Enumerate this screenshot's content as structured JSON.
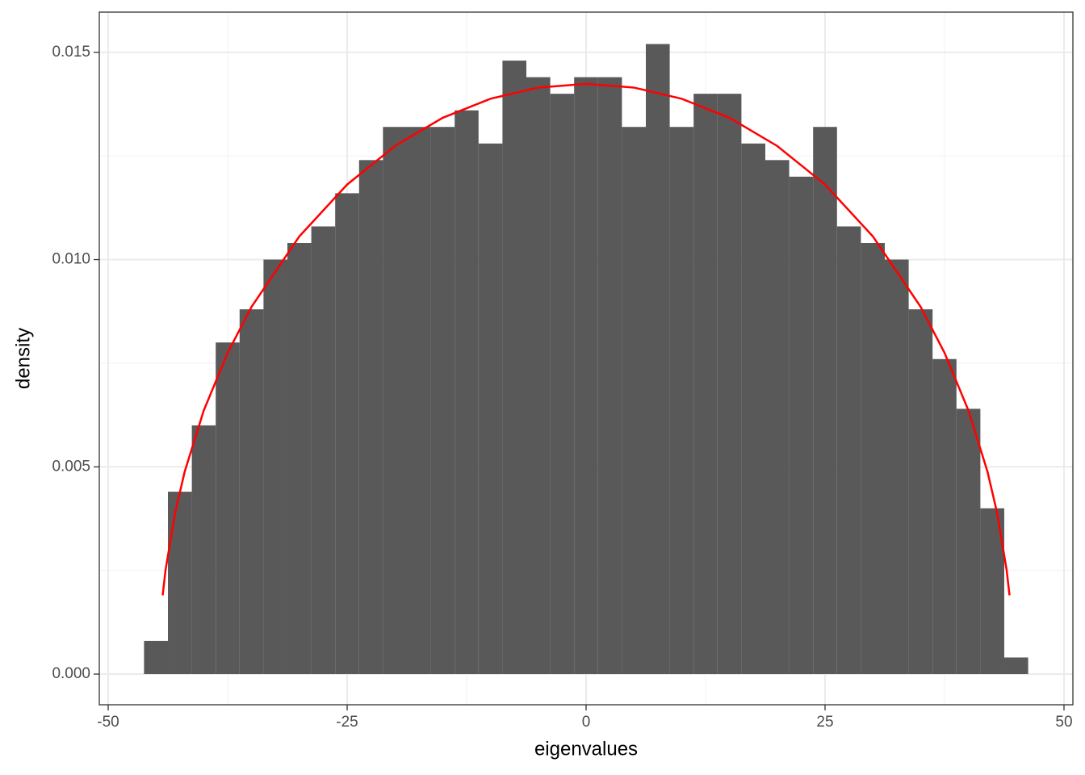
{
  "chart_data": {
    "type": "histogram",
    "bins": [
      -46.25,
      -43.75,
      -41.25,
      -38.75,
      -36.25,
      -33.75,
      -31.25,
      -28.75,
      -26.25,
      -23.75,
      -21.25,
      -18.75,
      -16.25,
      -13.75,
      -11.25,
      -8.75,
      -6.25,
      -3.75,
      -1.25,
      1.25,
      3.75,
      6.25,
      8.75,
      11.25,
      13.75,
      16.25,
      18.75,
      21.25,
      23.75,
      26.25,
      28.75,
      31.25,
      33.75,
      36.25,
      38.75,
      41.25,
      43.75,
      46.25
    ],
    "values": [
      0.0008,
      0.0044,
      0.006,
      0.008,
      0.0088,
      0.01,
      0.0104,
      0.0108,
      0.0116,
      0.0124,
      0.0132,
      0.0132,
      0.0132,
      0.0136,
      0.0128,
      0.0148,
      0.0144,
      0.014,
      0.0144,
      0.0144,
      0.0132,
      0.0152,
      0.0132,
      0.014,
      0.014,
      0.0128,
      0.0124,
      0.012,
      0.0132,
      0.0108,
      0.0104,
      0.01,
      0.0088,
      0.0076,
      0.0064,
      0.004,
      0.0004
    ],
    "color": "#595959",
    "curve": {
      "type": "line",
      "color": "#ff0000",
      "x": [
        -44.3,
        -44,
        -43,
        -42,
        -40,
        -37.5,
        -35,
        -30,
        -25,
        -20,
        -15,
        -10,
        -5,
        0,
        5,
        10,
        15,
        20,
        25,
        30,
        35,
        37.5,
        40,
        42,
        43,
        44,
        44.3
      ],
      "values": [
        0.0019,
        0.00251,
        0.00389,
        0.00488,
        0.00636,
        0.00775,
        0.00886,
        0.01056,
        0.01181,
        0.01274,
        0.01342,
        0.01388,
        0.01415,
        0.01424,
        0.01415,
        0.01388,
        0.01342,
        0.01274,
        0.01181,
        0.01056,
        0.00886,
        0.00775,
        0.00636,
        0.00488,
        0.00389,
        0.00251,
        0.0019
      ]
    },
    "xlabel": "eigenvalues",
    "ylabel": "density",
    "xlim": [
      -50.93,
      50.93
    ],
    "ylim": [
      -0.00074,
      0.01597
    ],
    "xticks": [
      -50,
      -25,
      0,
      25,
      50
    ],
    "yticks": [
      {
        "value": 0,
        "label": "0.000"
      },
      {
        "value": 0.005,
        "label": "0.005"
      },
      {
        "value": 0.01,
        "label": "0.010"
      },
      {
        "value": 0.015,
        "label": "0.015"
      }
    ],
    "grid": true
  }
}
